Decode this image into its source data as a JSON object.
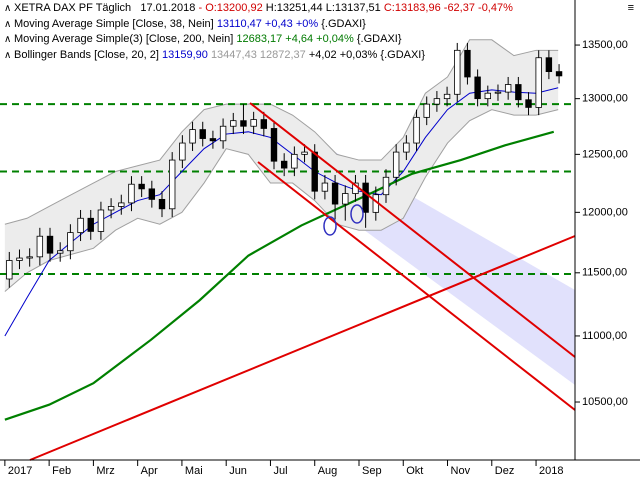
{
  "header": {
    "lines": [
      [
        "XETRA DAX PF Täglich",
        "17.01.2018",
        "- O:13200,92",
        "H:13251,44",
        "L:13137,51",
        "C:13183,96",
        "-62,37 -0,47%"
      ],
      [
        "Moving Average Simple [Close, 38, Nein]",
        "13110,47 +0,43 +0%",
        "{.GDAXI}"
      ],
      [
        "Moving Average Simple(3) [Close, 200, Nein]",
        "12683,17 +4,64 +0,04%",
        "{.GDAXI}"
      ],
      [
        "Bollinger Bands [Close, 20, 2]",
        "13159,90",
        "13447,43 12872,37",
        "+4,02 +0,03%",
        "{.GDAXI}"
      ]
    ]
  },
  "chart_data": {
    "type": "candlestick",
    "log_scale": true,
    "x": [
      0.1,
      0.33,
      0.56,
      0.79,
      1.02,
      1.25,
      1.48,
      1.71,
      1.94,
      2.17,
      2.4,
      2.63,
      2.86,
      3.09,
      3.32,
      3.55,
      3.78,
      4.01,
      4.24,
      4.47,
      4.7,
      4.93,
      5.16,
      5.39,
      5.62,
      5.85,
      6.08,
      6.31,
      6.54,
      6.77,
      7.0,
      7.23,
      7.46,
      7.69,
      7.92,
      8.15,
      8.38,
      8.61,
      8.84,
      9.07,
      9.3,
      9.53,
      9.76,
      9.99,
      10.22,
      10.45,
      10.68,
      10.91,
      11.14,
      11.37,
      11.6,
      11.83,
      12.06,
      12.29,
      12.52
    ],
    "open": [
      11450,
      11600,
      11620,
      11630,
      11800,
      11660,
      11680,
      11830,
      11950,
      11840,
      12020,
      12050,
      12080,
      12240,
      12200,
      12110,
      12030,
      12450,
      12600,
      12720,
      12640,
      12620,
      12750,
      12800,
      12750,
      12810,
      12730,
      12440,
      12380,
      12500,
      12520,
      12180,
      12250,
      12070,
      12160,
      12250,
      12000,
      12150,
      12300,
      12520,
      12600,
      12830,
      12950,
      13000,
      13040,
      13450,
      13200,
      13000,
      13050,
      13060,
      13130,
      12990,
      12920,
      13380,
      13250
    ],
    "high": [
      11670,
      11690,
      11700,
      11870,
      11870,
      11750,
      11900,
      12020,
      12020,
      12090,
      12120,
      12150,
      12310,
      12310,
      12270,
      12180,
      12520,
      12670,
      12790,
      12790,
      12710,
      12820,
      12870,
      12950,
      12880,
      12880,
      12800,
      12510,
      12570,
      12590,
      12590,
      12320,
      12320,
      12230,
      12320,
      12320,
      12220,
      12370,
      12590,
      12670,
      12900,
      13020,
      13070,
      13110,
      13520,
      13520,
      13270,
      13120,
      13130,
      13200,
      13200,
      13060,
      13450,
      13450,
      13320
    ],
    "low": [
      11380,
      11530,
      11550,
      11560,
      11590,
      11590,
      11610,
      11760,
      11770,
      11770,
      11950,
      11980,
      12010,
      12130,
      12040,
      11960,
      11960,
      12380,
      12530,
      12570,
      12550,
      12550,
      12680,
      12680,
      12680,
      12660,
      12370,
      12310,
      12310,
      12430,
      12110,
      12110,
      11940,
      11930,
      12090,
      11870,
      11930,
      12080,
      12230,
      12450,
      12530,
      12760,
      12880,
      12930,
      12970,
      13130,
      12930,
      12930,
      12980,
      12990,
      12920,
      12850,
      12850,
      13180,
      13140
    ],
    "close": [
      11600,
      11620,
      11630,
      11800,
      11660,
      11680,
      11830,
      11950,
      11840,
      12020,
      12050,
      12080,
      12240,
      12200,
      12110,
      12030,
      12450,
      12600,
      12720,
      12640,
      12620,
      12750,
      12800,
      12750,
      12810,
      12730,
      12440,
      12380,
      12500,
      12520,
      12180,
      12250,
      12070,
      12160,
      12250,
      12000,
      12150,
      12300,
      12520,
      12600,
      12830,
      12950,
      13000,
      13040,
      13450,
      13200,
      13000,
      13050,
      13060,
      13130,
      12990,
      12920,
      13380,
      13250,
      13210
    ],
    "up_color": "#ffffff",
    "down_color": "#000000",
    "bollinger": {
      "color": "#a0a0a0",
      "fill": "#ececec",
      "x": [
        0,
        0.5,
        1,
        1.5,
        2,
        2.5,
        3,
        3.5,
        4,
        4.5,
        5,
        5.5,
        6,
        6.5,
        7,
        7.5,
        8,
        8.5,
        9,
        9.5,
        10,
        10.5,
        11,
        11.5,
        12,
        12.5
      ],
      "upper": [
        11900,
        11950,
        12050,
        12150,
        12250,
        12350,
        12400,
        12450,
        12700,
        12900,
        12950,
        12950,
        12950,
        12850,
        12700,
        12500,
        12450,
        12450,
        12650,
        13050,
        13200,
        13550,
        13550,
        13400,
        13450,
        13450
      ],
      "lower": [
        11350,
        11500,
        11600,
        11650,
        11700,
        11850,
        11950,
        11900,
        12000,
        12250,
        12550,
        12500,
        12250,
        12250,
        12100,
        11900,
        11850,
        11850,
        11950,
        12300,
        12600,
        12800,
        12900,
        12850,
        12850,
        12900
      ]
    },
    "series": [
      {
        "color": "#0000cc",
        "x": [
          0,
          0.5,
          1,
          1.5,
          2,
          2.5,
          3,
          3.5,
          4,
          4.5,
          5,
          5.5,
          6,
          6.5,
          7,
          7.5,
          8,
          8.5,
          9,
          9.5,
          10,
          10.5,
          11,
          11.5,
          12,
          12.5
        ],
        "values": [
          11000,
          11300,
          11600,
          11750,
          11900,
          12000,
          12100,
          12150,
          12350,
          12550,
          12680,
          12700,
          12650,
          12500,
          12350,
          12250,
          12180,
          12150,
          12350,
          12650,
          12900,
          13050,
          13080,
          13060,
          13050,
          13100
        ]
      },
      {
        "color": "#008000",
        "weight": "bold",
        "x": [
          0,
          1,
          2,
          3.3,
          4.4,
          5.5,
          6.7,
          8.2,
          9.2,
          10.3,
          11.3,
          12.4
        ],
        "values": [
          10370,
          10480,
          10640,
          10970,
          11280,
          11640,
          11890,
          12150,
          12330,
          12450,
          12580,
          12700
        ]
      }
    ],
    "levels": [
      12950,
      12350,
      11490
    ],
    "level_color": "#008000",
    "xlim": [
      -0.11,
      12.88
    ],
    "xticks": [
      {
        "value": 0,
        "label": "2017"
      },
      {
        "value": 1,
        "label": "Feb"
      },
      {
        "value": 2,
        "label": "Mrz"
      },
      {
        "value": 3,
        "label": "Apr"
      },
      {
        "value": 4,
        "label": "Mai"
      },
      {
        "value": 5,
        "label": "Jun"
      },
      {
        "value": 6,
        "label": "Jul"
      },
      {
        "value": 7,
        "label": "Aug"
      },
      {
        "value": 8,
        "label": "Sep"
      },
      {
        "value": 9,
        "label": "Okt"
      },
      {
        "value": 10,
        "label": "Nov"
      },
      {
        "value": 11,
        "label": "Dez"
      },
      {
        "value": 12,
        "label": "2018"
      }
    ],
    "ylim": [
      10080,
      13935
    ],
    "yticks": [
      {
        "value": 10500,
        "label": "10500,00"
      },
      {
        "value": 11000,
        "label": "11000,00"
      },
      {
        "value": 11500,
        "label": "11500,00"
      },
      {
        "value": 12000,
        "label": "12000,00"
      },
      {
        "value": 12500,
        "label": "12500,00"
      },
      {
        "value": 13000,
        "label": "13000,00"
      },
      {
        "value": 13500,
        "label": "13500,00"
      }
    ]
  }
}
